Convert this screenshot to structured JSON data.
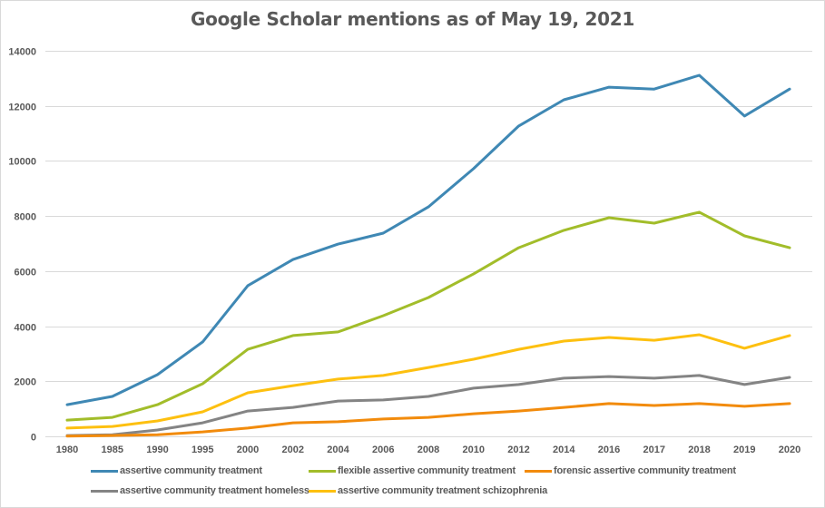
{
  "chart_data": {
    "type": "line",
    "title": "Google Scholar mentions as of May 19, 2021",
    "xlabel": "",
    "ylabel": "",
    "ylim": [
      0,
      14000
    ],
    "yticks": [
      "0",
      "2000",
      "4000",
      "6000",
      "8000",
      "10000",
      "12000",
      "14000"
    ],
    "ytick_values": [
      0,
      2000,
      4000,
      6000,
      8000,
      10000,
      12000,
      14000
    ],
    "categories": [
      "1980",
      "1985",
      "1990",
      "1995",
      "2000",
      "2002",
      "2004",
      "2006",
      "2008",
      "2010",
      "2012",
      "2014",
      "2016",
      "2017",
      "2018",
      "2019",
      "2020"
    ],
    "grid": true,
    "legend_position": "bottom",
    "series": [
      {
        "name": "assertive community treatment",
        "color": "#3f88b4",
        "values": [
          1150,
          1450,
          2240,
          3430,
          5470,
          6420,
          6980,
          7380,
          8330,
          9720,
          11270,
          12220,
          12680,
          12610,
          13110,
          11630,
          12610
        ]
      },
      {
        "name": "flexible assertive community treatment",
        "color": "#a2bd2a",
        "values": [
          590,
          690,
          1150,
          1910,
          3160,
          3660,
          3790,
          4380,
          5040,
          5900,
          6850,
          7480,
          7940,
          7740,
          8140,
          7280,
          6850
        ]
      },
      {
        "name": "forensic assertive community treatment",
        "color": "#f28b0c",
        "values": [
          10,
          30,
          60,
          160,
          300,
          490,
          530,
          630,
          690,
          820,
          920,
          1050,
          1190,
          1120,
          1190,
          1090,
          1190
        ]
      },
      {
        "name": "assertive community treatment homeless",
        "color": "#848484",
        "values": [
          30,
          60,
          230,
          490,
          920,
          1050,
          1280,
          1320,
          1450,
          1750,
          1880,
          2110,
          2170,
          2110,
          2210,
          1880,
          2140
        ]
      },
      {
        "name": "assertive community treatment schizophrenia",
        "color": "#fdc010",
        "values": [
          300,
          360,
          560,
          890,
          1580,
          1840,
          2080,
          2210,
          2500,
          2800,
          3160,
          3460,
          3590,
          3490,
          3690,
          3200,
          3660
        ]
      }
    ]
  }
}
